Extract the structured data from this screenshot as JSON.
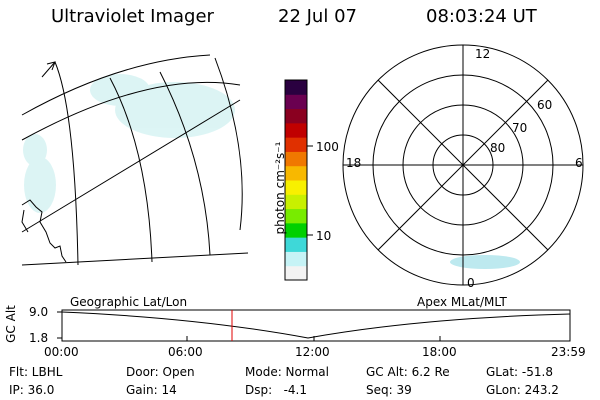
{
  "header": {
    "instrument": "Ultraviolet Imager",
    "date": "22 Jul 07",
    "time": "08:03:24 UT"
  },
  "colorbar": {
    "unit_label": "photon cm⁻²s⁻¹",
    "tick_100": "100",
    "tick_10": "10",
    "scale": "log",
    "colors": [
      "#f3f3f3",
      "#c6f3f6",
      "#3ed8d8",
      "#00d000",
      "#78ec00",
      "#c8f000",
      "#f8f000",
      "#f8b800",
      "#f07800",
      "#e03000",
      "#c00000",
      "#8a0020",
      "#6a0050",
      "#2a0040"
    ]
  },
  "polar": {
    "mlt_labels": {
      "top": "12",
      "bottom": "0",
      "left": "18",
      "right": "6"
    },
    "lat_labels": [
      "60",
      "70",
      "80"
    ]
  },
  "timeline": {
    "y_axis_label": "GC Alt",
    "y_tick_top": "9.0",
    "y_tick_bottom": "1.8",
    "left_title": "Geographic Lat/Lon",
    "right_title": "Apex MLat/MLT",
    "x_ticks": [
      "00:00",
      "06:00",
      "12:00",
      "18:00",
      "23:59"
    ],
    "marker_color": "#e00000"
  },
  "info": {
    "flt": "Flt: LBHL",
    "ip": "IP: 36.0",
    "door": "Door: Open",
    "gain": "Gain: 14",
    "mode": "Mode: Normal",
    "dsp": "Dsp:   -4.1",
    "gc_alt": "GC Alt: 6.2 Re",
    "seq": "Seq: 39",
    "glat": "GLat: -51.8",
    "glon": "GLon: 243.2"
  }
}
